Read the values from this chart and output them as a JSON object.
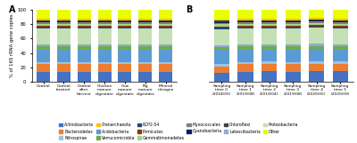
{
  "panel_A_labels": [
    "Control",
    "Control\ntreated",
    "Control\nafter\nharvest",
    "Chicken\nmanure\ndigestate",
    "Cow\nmanure\ndigestate",
    "Pig\nmanure\ndigestate",
    "Mineral\nnitrogen"
  ],
  "panel_B_labels": [
    "Sampling\ntime 0\n(2018/05)",
    "Sampling\ntime 1\n(2019/08)",
    "Sampling\ntime 2\n(2019/04)",
    "Sampling\ntime 3\n(2019/08)",
    "Sampling\ntime 4\n(2020/05)",
    "Sampling\ntime 5\n(2020/09)"
  ],
  "categories": [
    "Actinobacteria",
    "Bacteroidetes",
    "Nitrospirae",
    "Acidobacteria",
    "Verrucomicrobia",
    "Latescibacteria",
    "Proteobacteria",
    "RCP2-54",
    "Firmicutes",
    "Gemmatimonadetes",
    "Myxococcales",
    "Cyanobacteria",
    "Chloroflexi",
    "Crenarchaeota",
    "Other"
  ],
  "legend_categories": [
    "Actinobacteria",
    "Bacteroidetes",
    "Nitrospirae",
    "Crenarchaeota",
    "Acidobacteria",
    "Verrucomicrobia",
    "RCP2-54",
    "Firmicutes",
    "Gemmatimonadetes",
    "Myxococcales",
    "Cyanobacteria",
    "Chloroflexi",
    "Latescibacteria",
    "Proteobacteria",
    "Other"
  ],
  "colors": {
    "Actinobacteria": "#4472c4",
    "Bacteroidetes": "#ed7d31",
    "Nitrospirae": "#9dc3e6",
    "Crenarchaeota": "#ffc000",
    "Acidobacteria": "#5b9bd5",
    "Verrucomicrobia": "#70ad47",
    "RCP2-54": "#264478",
    "Firmicutes": "#843c0c",
    "Gemmatimonadetes": "#a9d18e",
    "Myxococcales": "#808080",
    "Cyanobacteria": "#002060",
    "Chloroflexi": "#404040",
    "Latescibacteria": "#8eaadb",
    "Proteobacteria": "#c5e0b4",
    "Other": "#e9ff00"
  },
  "panel_A_data": {
    "Actinobacteria": [
      14,
      14,
      14,
      14,
      14,
      14,
      14
    ],
    "Bacteroidetes": [
      10,
      10,
      10,
      10,
      10,
      10,
      10
    ],
    "Nitrospirae": [
      3,
      3,
      3,
      3,
      3,
      3,
      3
    ],
    "Acidobacteria": [
      18,
      18,
      18,
      18,
      18,
      18,
      18
    ],
    "Verrucomicrobia": [
      4,
      4,
      4,
      4,
      4,
      4,
      4
    ],
    "Latescibacteria": [
      3,
      3,
      3,
      3,
      3,
      3,
      3
    ],
    "Proteobacteria": [
      22,
      22,
      22,
      22,
      22,
      22,
      22
    ],
    "RCP2-54": [
      2,
      2,
      2,
      2,
      2,
      2,
      2
    ],
    "Firmicutes": [
      2,
      2,
      2,
      2,
      2,
      2,
      2
    ],
    "Gemmatimonadetes": [
      3,
      3,
      3,
      3,
      3,
      3,
      3
    ],
    "Myxococcales": [
      2,
      2,
      2,
      2,
      2,
      2,
      2
    ],
    "Cyanobacteria": [
      1,
      1,
      1,
      1,
      1,
      1,
      1
    ],
    "Chloroflexi": [
      2,
      2,
      2,
      2,
      2,
      2,
      2
    ],
    "Crenarchaeota": [
      2,
      2,
      2,
      2,
      2,
      2,
      2
    ],
    "Other": [
      12,
      12,
      12,
      12,
      12,
      12,
      12
    ]
  },
  "panel_B_data": {
    "Actinobacteria": [
      12,
      14,
      15,
      14,
      15,
      15
    ],
    "Bacteroidetes": [
      9,
      10,
      10,
      10,
      10,
      10
    ],
    "Nitrospirae": [
      3,
      3,
      3,
      3,
      3,
      3
    ],
    "Acidobacteria": [
      20,
      18,
      17,
      18,
      18,
      17
    ],
    "Verrucomicrobia": [
      4,
      4,
      4,
      4,
      4,
      4
    ],
    "Latescibacteria": [
      3,
      3,
      3,
      3,
      3,
      3
    ],
    "Proteobacteria": [
      22,
      22,
      22,
      22,
      22,
      22
    ],
    "RCP2-54": [
      2,
      2,
      2,
      2,
      2,
      2
    ],
    "Firmicutes": [
      2,
      2,
      2,
      2,
      2,
      2
    ],
    "Gemmatimonadetes": [
      3,
      3,
      3,
      3,
      3,
      3
    ],
    "Myxococcales": [
      2,
      2,
      2,
      2,
      2,
      2
    ],
    "Cyanobacteria": [
      1,
      1,
      1,
      1,
      1,
      1
    ],
    "Chloroflexi": [
      2,
      2,
      2,
      2,
      2,
      2
    ],
    "Crenarchaeota": [
      2,
      2,
      2,
      2,
      2,
      2
    ],
    "Other": [
      13,
      12,
      12,
      12,
      12,
      12
    ]
  },
  "ylabel": "% of 16S rRNA gene copies",
  "ylim": [
    0,
    100
  ],
  "figure_bg": "#ffffff"
}
